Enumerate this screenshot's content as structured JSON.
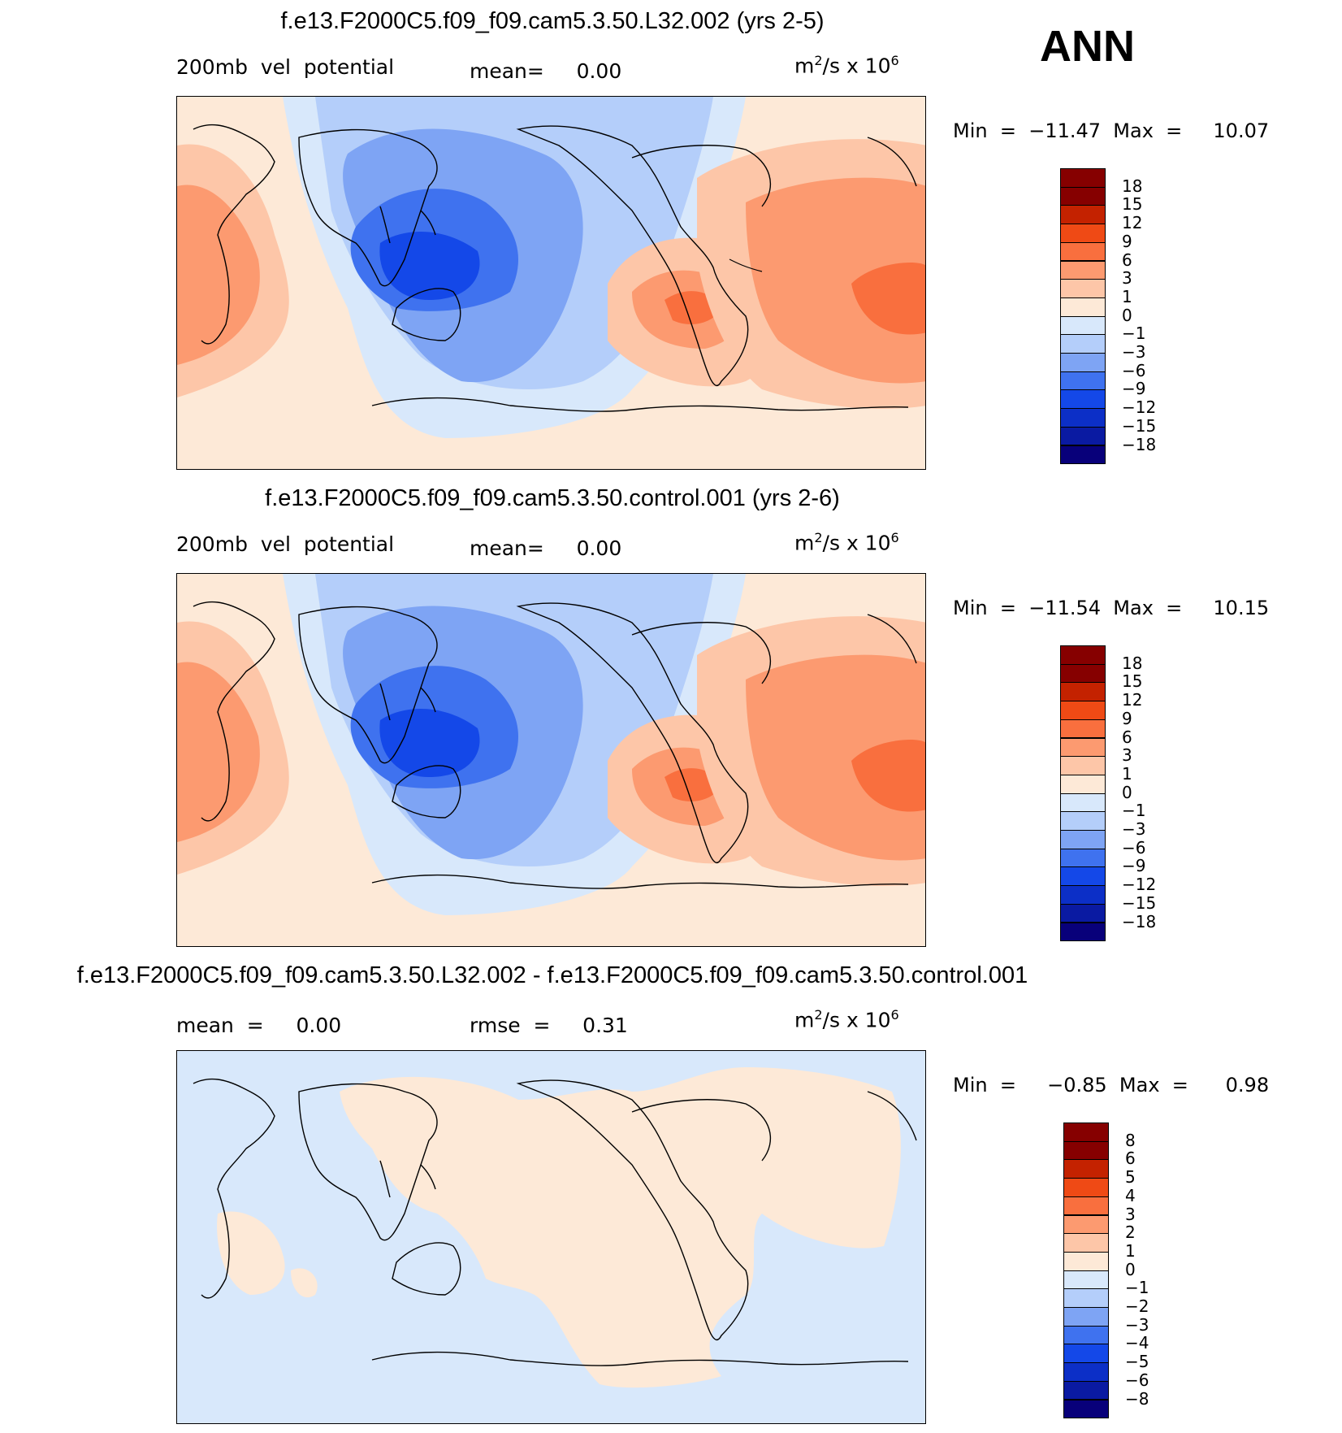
{
  "season": "ANN",
  "unit": {
    "base": "m",
    "base_sup": "2",
    "mid": "/s x 10",
    "mid_sup": "6"
  },
  "palettes": {
    "main": [
      "#08007a",
      "#0a1aa2",
      "#0c2fc7",
      "#1448e8",
      "#3f72ef",
      "#7ea4f4",
      "#b4cefa",
      "#d8e8fb",
      "#fde9d7",
      "#fdc6a8",
      "#fc9a70",
      "#f96f3e",
      "#ef4a15",
      "#c42200",
      "#860000"
    ],
    "diff": [
      "#08007a",
      "#0a1aa2",
      "#0c2fc7",
      "#1448e8",
      "#3f72ef",
      "#7ea4f4",
      "#b4cefa",
      "#d8e8fb",
      "#fde9d7",
      "#fdc6a8",
      "#fc9a70",
      "#f96f3e",
      "#ef4a15",
      "#c42200",
      "#860000"
    ]
  },
  "panels": [
    {
      "title": "f.e13.F2000C5.f09_f09.cam5.3.50.L32.002 (yrs 2-5)",
      "left_label": "200mb  vel  potential",
      "mid_label": "mean=     0.00",
      "stats": "Min  =  −11.47  Max  =     10.07",
      "levels": [
        "18",
        "15",
        "12",
        "9",
        "6",
        "3",
        "1",
        "0",
        "−1",
        "−3",
        "−6",
        "−9",
        "−12",
        "−15",
        "−18"
      ],
      "palette": "main"
    },
    {
      "title": "f.e13.F2000C5.f09_f09.cam5.3.50.control.001 (yrs 2-6)",
      "left_label": "200mb  vel  potential",
      "mid_label": "mean=     0.00",
      "stats": "Min  =  −11.54  Max  =     10.15",
      "levels": [
        "18",
        "15",
        "12",
        "9",
        "6",
        "3",
        "1",
        "0",
        "−1",
        "−3",
        "−6",
        "−9",
        "−12",
        "−15",
        "−18"
      ],
      "palette": "main"
    },
    {
      "title": "f.e13.F2000C5.f09_f09.cam5.3.50.L32.002 - f.e13.F2000C5.f09_f09.cam5.3.50.control.001",
      "left_label": "mean  =     0.00",
      "mid_label": "rmse  =     0.31",
      "stats": "Min  =     −0.85  Max  =      0.98",
      "levels": [
        "8",
        "6",
        "5",
        "4",
        "3",
        "2",
        "1",
        "0",
        "−1",
        "−2",
        "−3",
        "−4",
        "−5",
        "−6",
        "−8"
      ],
      "palette": "diff"
    }
  ]
}
